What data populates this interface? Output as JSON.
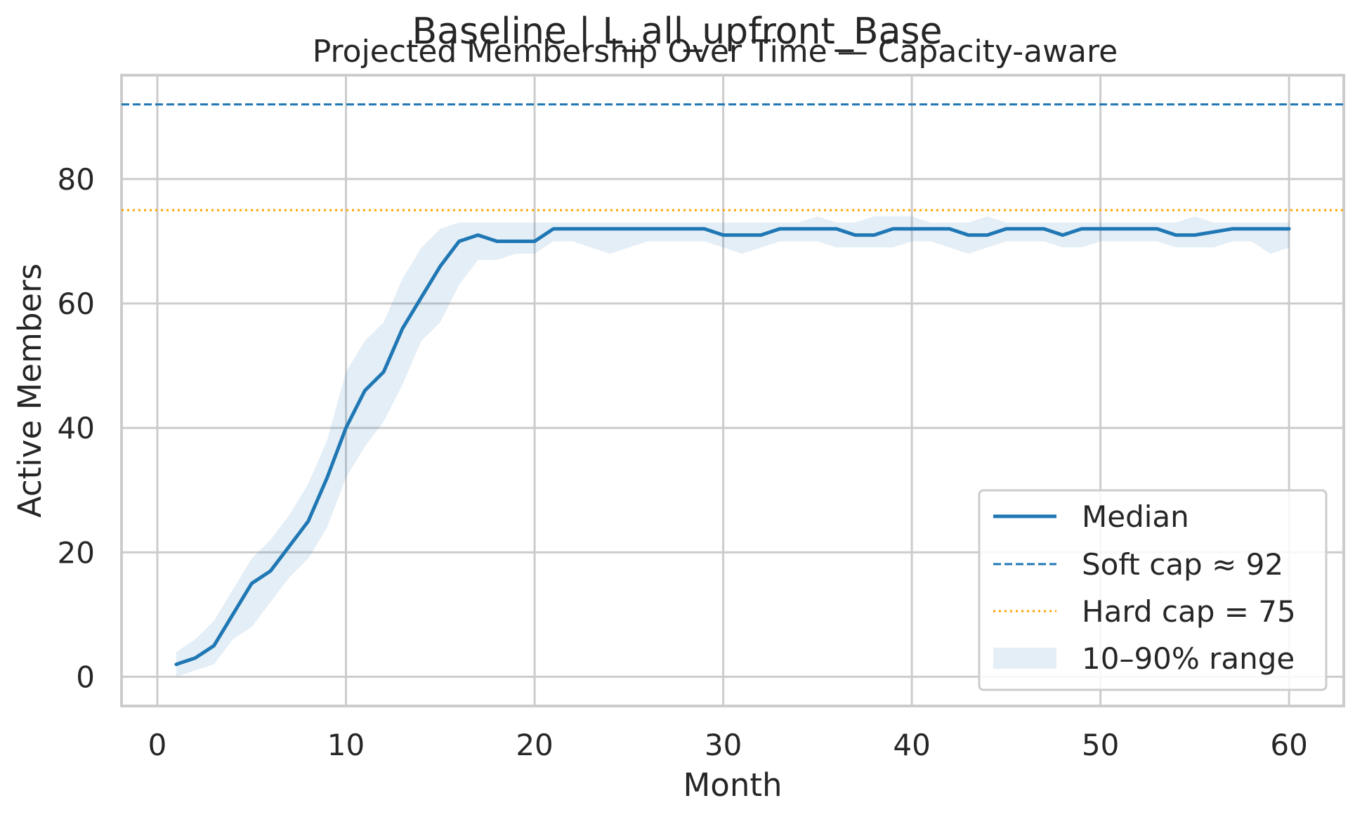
{
  "chart_data": {
    "type": "line",
    "suptitle": "Baseline | L_all_upfront_Base",
    "title": "Projected Membership Over Time — Capacity-aware",
    "xlabel": "Month",
    "ylabel": "Active Members",
    "xlim": [
      -1.9,
      62.9
    ],
    "ylim": [
      -4.7,
      96.7
    ],
    "x_ticks": [
      0,
      10,
      20,
      30,
      40,
      50,
      60
    ],
    "y_ticks": [
      0,
      20,
      40,
      60,
      80
    ],
    "grid": true,
    "legend_position": "lower-right",
    "x": [
      1,
      2,
      3,
      4,
      5,
      6,
      7,
      8,
      9,
      10,
      11,
      12,
      13,
      14,
      15,
      16,
      17,
      18,
      19,
      20,
      21,
      22,
      23,
      24,
      25,
      26,
      27,
      28,
      29,
      30,
      31,
      32,
      33,
      34,
      35,
      36,
      37,
      38,
      39,
      40,
      41,
      42,
      43,
      44,
      45,
      46,
      47,
      48,
      49,
      50,
      51,
      52,
      53,
      54,
      55,
      56,
      57,
      58,
      59,
      60
    ],
    "series": [
      {
        "name": "Median",
        "style": "solid",
        "color": "#1f77b4",
        "values": [
          2,
          3,
          5,
          10,
          15,
          17,
          21,
          25,
          32,
          40,
          46,
          49,
          56,
          61,
          66,
          70,
          71,
          70,
          70,
          70,
          72,
          72,
          72,
          72,
          72,
          72,
          72,
          72,
          72,
          71,
          71,
          71,
          72,
          72,
          72,
          72,
          71,
          71,
          72,
          72,
          72,
          72,
          71,
          71,
          72,
          72,
          72,
          71,
          72,
          72,
          72,
          72,
          72,
          71,
          71,
          71.5,
          72,
          72,
          72,
          72
        ]
      }
    ],
    "band": {
      "name": "10–90% range",
      "color": "#1f77b4",
      "opacity": 0.12,
      "lower": [
        0,
        1,
        2,
        6,
        8,
        12,
        16,
        19,
        24,
        32,
        37,
        41,
        47,
        54,
        57,
        63,
        67,
        67,
        68,
        68,
        70,
        70,
        69,
        68,
        69,
        70,
        70,
        70,
        70,
        69,
        68,
        69,
        70,
        70,
        70,
        69,
        69,
        69,
        69,
        70,
        70,
        69,
        68,
        69,
        70,
        70,
        70,
        69,
        69,
        70,
        70,
        70,
        70,
        69,
        69,
        69,
        70,
        70,
        68,
        69
      ],
      "upper": [
        4,
        6,
        9,
        14,
        19,
        22,
        26,
        31,
        38,
        49,
        54,
        57,
        64,
        69,
        72,
        73,
        73,
        73,
        73,
        73,
        73,
        73,
        73,
        73,
        73,
        73,
        73,
        73,
        73,
        73,
        73,
        73,
        73,
        73,
        74,
        73,
        73,
        74,
        74,
        74,
        73,
        73,
        73,
        74,
        73,
        73,
        73,
        73,
        73,
        73,
        73,
        73,
        73,
        73,
        74,
        73,
        73,
        73,
        73,
        73
      ]
    },
    "reference_lines": [
      {
        "name": "Soft cap ≈ 92",
        "y": 92,
        "style": "dashed",
        "color": "#1f77b4"
      },
      {
        "name": "Hard cap = 75",
        "y": 75,
        "style": "dotted",
        "color": "#ffa500"
      }
    ]
  }
}
